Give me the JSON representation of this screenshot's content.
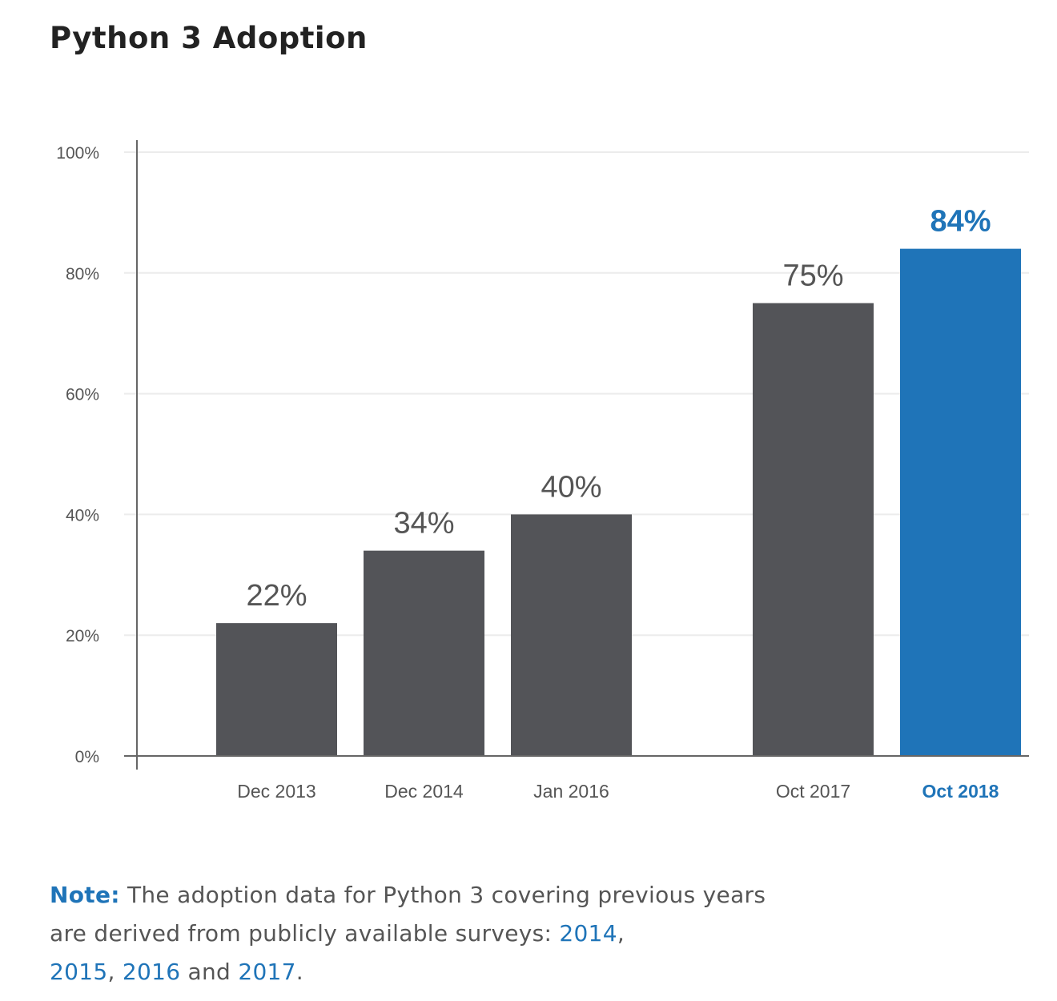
{
  "chart_data": {
    "type": "bar",
    "title": "Python 3 Adoption",
    "categories": [
      "Dec 2013",
      "Dec 2014",
      "Jan 2016",
      "Oct 2017",
      "Oct 2018"
    ],
    "values": [
      22,
      34,
      40,
      75,
      84
    ],
    "data_labels": [
      "22%",
      "34%",
      "40%",
      "75%",
      "84%"
    ],
    "highlight_index": 4,
    "ylim": [
      0,
      100
    ],
    "yticks": [
      0,
      20,
      40,
      60,
      80,
      100
    ],
    "ytick_labels": [
      "0%",
      "20%",
      "40%",
      "60%",
      "80%",
      "100%"
    ],
    "xlabel": "",
    "ylabel": "",
    "grid": true,
    "colors": {
      "bar": "#535458",
      "highlight": "#1f74b8",
      "grid": "#ececec",
      "axis": "#666666"
    }
  },
  "note": {
    "label": "Note:",
    "text1": " The adoption data for Python 3 covering previous years are derived from publicly available surveys: ",
    "links": [
      "2014",
      "2015",
      "2016",
      "2017"
    ],
    "sep1": ",",
    "sep2": ", ",
    "sep3": ", ",
    "sep4": " and ",
    "end": "."
  }
}
